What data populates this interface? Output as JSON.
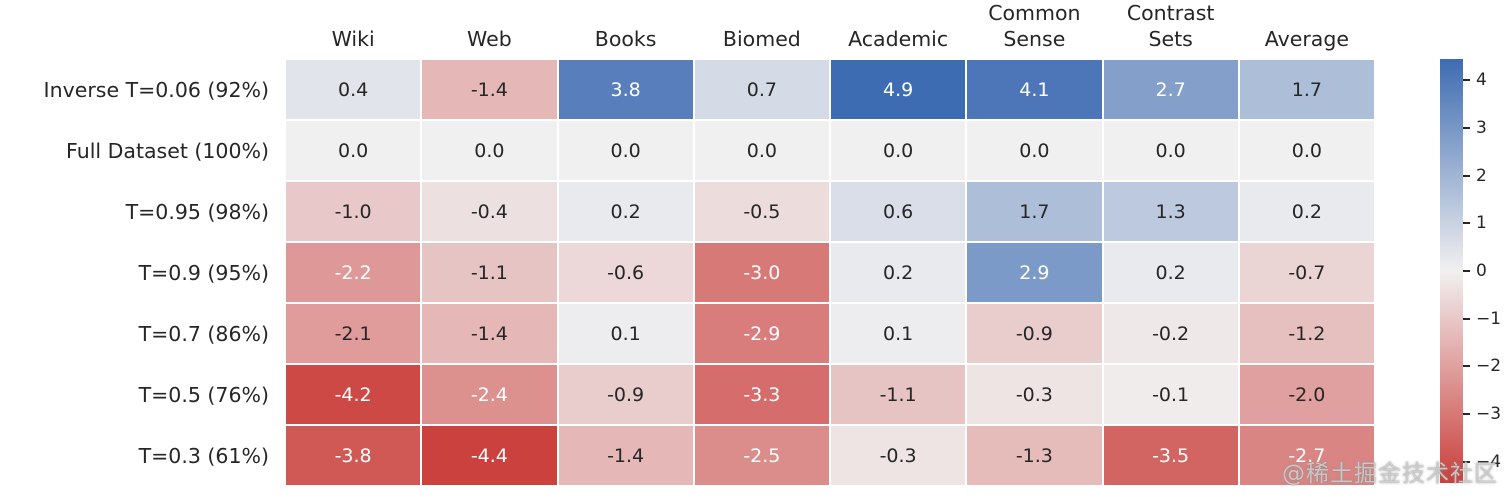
{
  "chart_data": {
    "type": "heatmap",
    "categories": [
      "Wiki",
      "Web",
      "Books",
      "Biomed",
      "Academic",
      "Common\nSense",
      "Contrast\nSets",
      "Average"
    ],
    "rows": [
      "Inverse T=0.06 (92%)",
      "Full Dataset (100%)",
      "T=0.95 (98%)",
      "T=0.9 (95%)",
      "T=0.7 (86%)",
      "T=0.5 (76%)",
      "T=0.3 (61%)"
    ],
    "values": [
      [
        0.4,
        -1.4,
        3.8,
        0.7,
        4.9,
        4.1,
        2.7,
        1.7
      ],
      [
        0.0,
        0.0,
        0.0,
        0.0,
        0.0,
        0.0,
        0.0,
        0.0
      ],
      [
        -1.0,
        -0.4,
        0.2,
        -0.5,
        0.6,
        1.7,
        1.3,
        0.2
      ],
      [
        -2.2,
        -1.1,
        -0.6,
        -3.0,
        0.2,
        2.9,
        0.2,
        -0.7
      ],
      [
        -2.1,
        -1.4,
        0.1,
        -2.9,
        0.1,
        -0.9,
        -0.2,
        -1.2
      ],
      [
        -4.2,
        -2.4,
        -0.9,
        -3.3,
        -1.1,
        -0.3,
        -0.1,
        -2.0
      ],
      [
        -3.8,
        -4.4,
        -1.4,
        -2.5,
        -0.3,
        -1.3,
        -3.5,
        -2.7
      ]
    ],
    "decimals": 1,
    "grid": false,
    "colorbar": {
      "position": "right",
      "vmax": 4.45,
      "tick_values": [
        4,
        3,
        2,
        1,
        0,
        -1,
        -2,
        -3,
        -4
      ],
      "tick_labels": [
        "4",
        "3",
        "2",
        "1",
        "0",
        "−1",
        "−2",
        "−3",
        "−4"
      ]
    },
    "colors": {
      "positive_end": "#3e6cb2",
      "zero": "#f1f0f0",
      "negative_end": "#ca3f3c",
      "annot_dark": "#262626",
      "annot_light": "#ffffff"
    },
    "annot_light_threshold": 2.2
  },
  "watermark": {
    "text": "@稀土掘金技术社区"
  }
}
